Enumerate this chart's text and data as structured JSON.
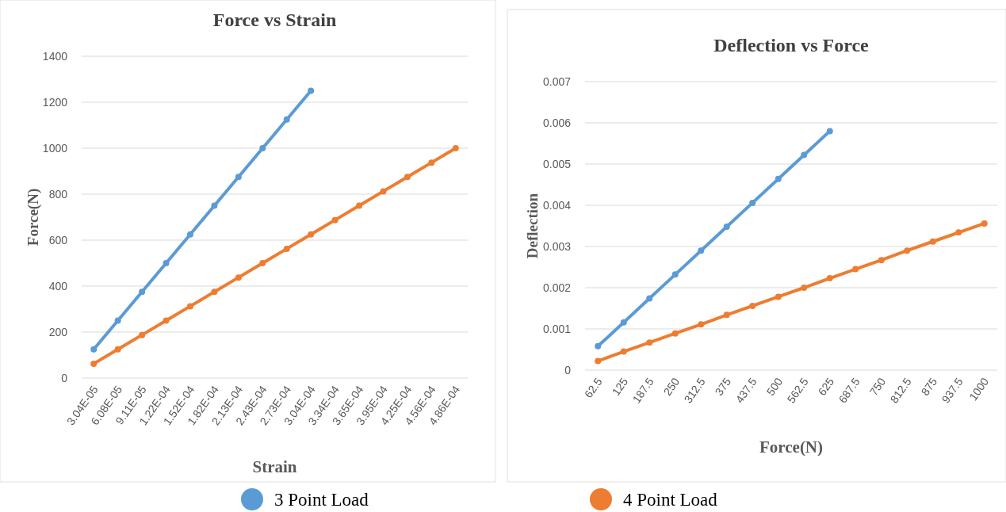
{
  "chart_data": [
    {
      "type": "line",
      "title": "Force vs Strain",
      "xlabel": "Strain",
      "ylabel": "Force(N)",
      "categories": [
        "3.04E-05",
        "6.08E-05",
        "9.11E-05",
        "1.22E-04",
        "1.52E-04",
        "1.82E-04",
        "2.13E-04",
        "2.43E-04",
        "2.73E-04",
        "3.04E-04",
        "3.34E-04",
        "3.65E-04",
        "3.95E-04",
        "4.25E-04",
        "4.56E-04",
        "4.86E-04"
      ],
      "series": [
        {
          "name": "3 Point Load",
          "color": "#5b9bd5",
          "values": [
            125,
            250,
            375,
            500,
            625,
            750,
            875,
            1000,
            1125,
            1250,
            null,
            null,
            null,
            null,
            null,
            null
          ]
        },
        {
          "color": "#ed7d31",
          "values": [
            62.5,
            125,
            187.5,
            250,
            312.5,
            375,
            437.5,
            500,
            562.5,
            625,
            687.5,
            750,
            812.5,
            875,
            937.5,
            1000
          ]
        }
      ],
      "ylim": [
        0,
        1400
      ],
      "yticks": [
        0,
        200,
        400,
        600,
        800,
        1000,
        1200,
        1400
      ],
      "grid": "y",
      "legend": "bottom",
      "marker": "circle",
      "line_style": "solid"
    },
    {
      "type": "line",
      "title": "Deflection vs Force",
      "xlabel": "Force(N)",
      "ylabel": "Deflection",
      "categories": [
        "62.5",
        "125",
        "187.5",
        "250",
        "312.5",
        "375",
        "437.5",
        "500",
        "562.5",
        "625",
        "687.5",
        "750",
        "812.5",
        "875",
        "937.5",
        "1000"
      ],
      "series": [
        {
          "color": "#5b9bd5",
          "values": [
            0.00058,
            0.00116,
            0.00174,
            0.00232,
            0.0029,
            0.00348,
            0.00406,
            0.00464,
            0.00522,
            0.0058,
            null,
            null,
            null,
            null,
            null,
            null
          ]
        },
        {
          "name": "4 Point Load",
          "color": "#ed7d31",
          "values": [
            0.00022,
            0.00045,
            0.00067,
            0.00089,
            0.00111,
            0.00134,
            0.00156,
            0.00178,
            0.002,
            0.00223,
            0.00245,
            0.00267,
            0.0029,
            0.00312,
            0.00334,
            0.00356
          ]
        }
      ],
      "ylim": [
        0,
        0.007
      ],
      "yticks": [
        0,
        0.001,
        0.002,
        0.003,
        0.004,
        0.005,
        0.006,
        0.007
      ],
      "grid": "y",
      "legend": "bottom",
      "marker": "circle",
      "line_style": "solid"
    }
  ]
}
